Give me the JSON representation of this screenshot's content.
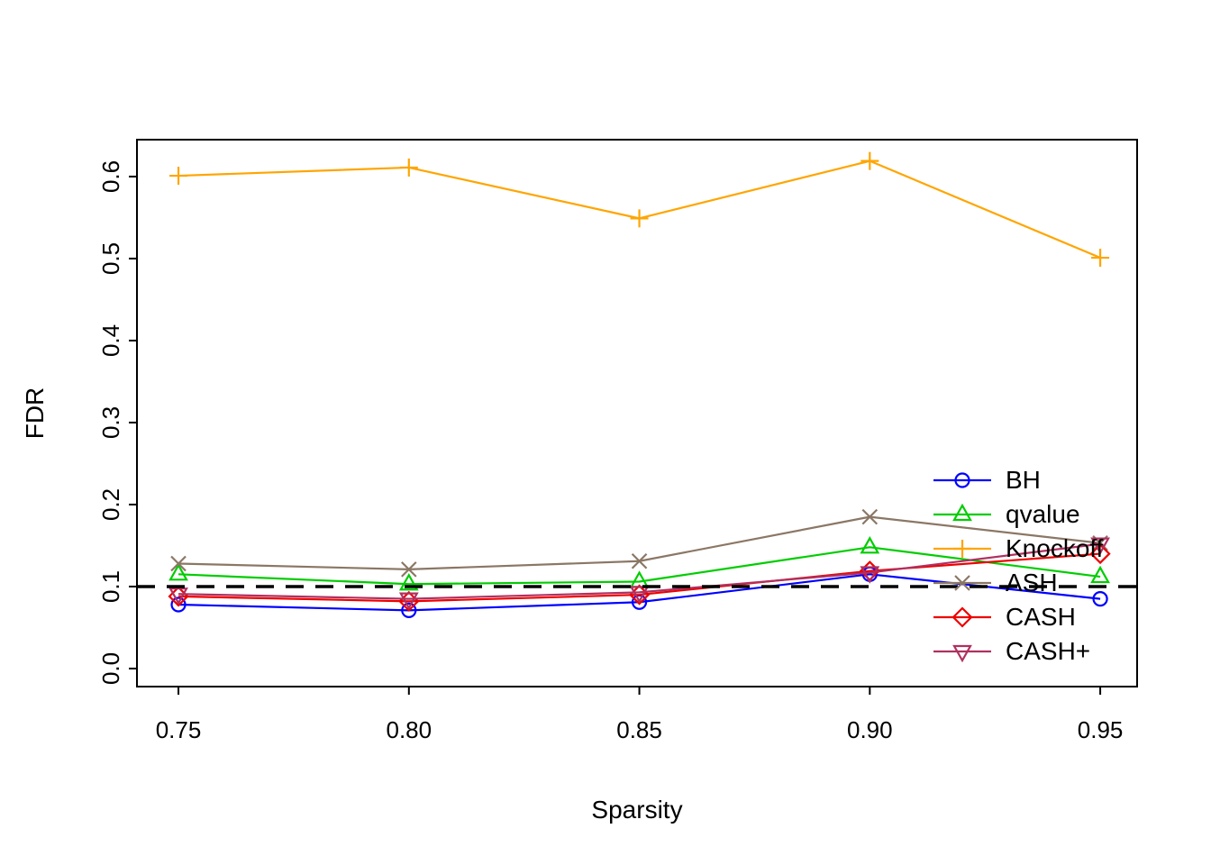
{
  "figure": {
    "background": "#ffffff"
  },
  "chart_data": {
    "type": "line",
    "title": "",
    "xlabel": "Sparsity",
    "ylabel": "FDR",
    "x": [
      0.75,
      0.8,
      0.85,
      0.9,
      0.95
    ],
    "x_ticks": [
      "0.75",
      "0.80",
      "0.85",
      "0.90",
      "0.95"
    ],
    "y_ticks": [
      "0.0",
      "0.1",
      "0.2",
      "0.3",
      "0.4",
      "0.5",
      "0.6"
    ],
    "xlim": [
      0.741,
      0.958
    ],
    "ylim": [
      -0.022,
      0.645
    ],
    "grid": false,
    "legend_position": "inside-lower-right",
    "reference_line": {
      "y": 0.1,
      "style": "dashed",
      "color": "#000000"
    },
    "series": [
      {
        "name": "BH",
        "color": "#0000ff",
        "marker": "circle",
        "values": [
          0.078,
          0.071,
          0.081,
          0.115,
          0.085
        ]
      },
      {
        "name": "qvalue",
        "color": "#00cd00",
        "marker": "triangle-up",
        "values": [
          0.115,
          0.103,
          0.106,
          0.148,
          0.112
        ]
      },
      {
        "name": "Knockoff",
        "color": "#ffa500",
        "marker": "plus",
        "values": [
          0.601,
          0.611,
          0.549,
          0.619,
          0.501
        ]
      },
      {
        "name": "ASH",
        "color": "#8b7765",
        "marker": "x",
        "values": [
          0.128,
          0.121,
          0.131,
          0.185,
          0.153
        ]
      },
      {
        "name": "CASH",
        "color": "#ee0000",
        "marker": "diamond",
        "values": [
          0.088,
          0.082,
          0.09,
          0.119,
          0.14
        ]
      },
      {
        "name": "CASH+",
        "color": "#b03060",
        "marker": "triangle-down",
        "values": [
          0.091,
          0.085,
          0.093,
          0.117,
          0.152
        ]
      }
    ]
  }
}
